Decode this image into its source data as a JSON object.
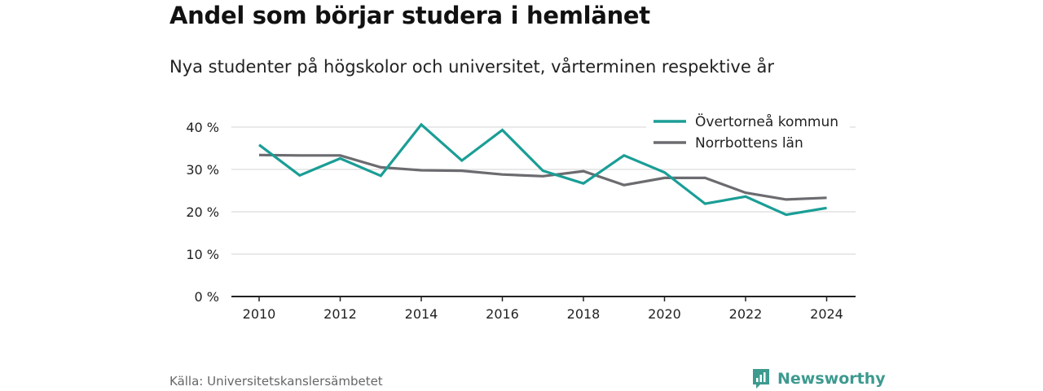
{
  "header": {
    "title": "Andel som börjar studera i hemlänet",
    "subtitle": "Nya studenter på högskolor och universitet, vårterminen respektive år"
  },
  "footer": {
    "source": "Källa: Universitetskanslersämbetet",
    "brand": "Newsworthy",
    "brand_color": "#3d9a8f"
  },
  "chart_data": {
    "type": "line",
    "title": "Andel som börjar studera i hemlänet",
    "subtitle": "Nya studenter på högskolor och universitet, vårterminen respektive år",
    "x": [
      2010,
      2011,
      2012,
      2013,
      2014,
      2015,
      2016,
      2017,
      2018,
      2019,
      2020,
      2021,
      2022,
      2023,
      2024
    ],
    "x_ticks": [
      "2010",
      "2012",
      "2014",
      "2016",
      "2018",
      "2020",
      "2022",
      "2024"
    ],
    "y_ticks": [
      "0 %",
      "10 %",
      "20 %",
      "30 %",
      "40 %"
    ],
    "ylim": [
      0,
      40
    ],
    "grid": true,
    "legend_position": "top-right",
    "series": [
      {
        "name": "Övertorneå kommun",
        "color": "#1a9e96",
        "values": [
          35.8,
          28.6,
          32.6,
          28.5,
          40.6,
          32.1,
          39.3,
          29.7,
          26.7,
          33.3,
          29.3,
          21.9,
          23.6,
          19.3,
          20.9
        ]
      },
      {
        "name": "Norrbottens län",
        "color": "#6b6b70",
        "values": [
          33.4,
          33.3,
          33.3,
          30.5,
          29.8,
          29.7,
          28.8,
          28.4,
          29.6,
          26.3,
          28.0,
          28.0,
          24.5,
          22.9,
          23.3
        ]
      }
    ]
  }
}
